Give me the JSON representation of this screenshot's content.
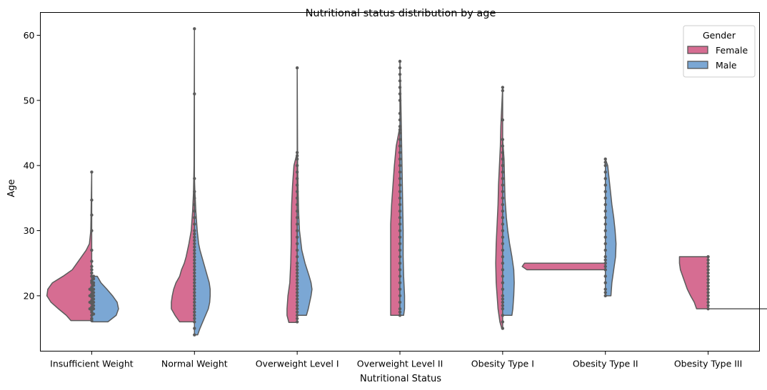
{
  "chart_data": {
    "type": "violin",
    "title": "Nutritional status distribution by age",
    "xlabel": "Nutritional Status",
    "ylabel": "Age",
    "ylim": [
      11.5,
      63.5
    ],
    "yticks": [
      20,
      30,
      40,
      50,
      60
    ],
    "categories": [
      "Insufficient Weight",
      "Normal Weight",
      "Overweight Level I",
      "Overweight Level II",
      "Obesity Type I",
      "Obesity Type II",
      "Obesity Type III"
    ],
    "legend": {
      "title": "Gender",
      "position": "top-right"
    },
    "series": [
      {
        "name": "Female",
        "color": "#d66d92",
        "violins": [
          {
            "min": 16.2,
            "max": 39,
            "profile": [
              [
                16.2,
                0.45
              ],
              [
                17,
                0.55
              ],
              [
                18,
                0.72
              ],
              [
                19,
                0.88
              ],
              [
                20,
                0.97
              ],
              [
                21,
                0.95
              ],
              [
                22,
                0.85
              ],
              [
                23,
                0.62
              ],
              [
                24,
                0.42
              ],
              [
                25,
                0.32
              ],
              [
                26,
                0.22
              ],
              [
                27,
                0.12
              ],
              [
                28,
                0.05
              ],
              [
                30,
                0.02
              ],
              [
                39,
                0
              ]
            ]
          },
          {
            "min": 16,
            "max": 61,
            "profile": [
              [
                16,
                0.32
              ],
              [
                17,
                0.42
              ],
              [
                18,
                0.5
              ],
              [
                19,
                0.5
              ],
              [
                20,
                0.48
              ],
              [
                21,
                0.45
              ],
              [
                22,
                0.4
              ],
              [
                23,
                0.32
              ],
              [
                24,
                0.28
              ],
              [
                25,
                0.22
              ],
              [
                26,
                0.18
              ],
              [
                28,
                0.12
              ],
              [
                30,
                0.07
              ],
              [
                33,
                0.04
              ],
              [
                36,
                0.02
              ],
              [
                40,
                0.01
              ],
              [
                61,
                0
              ]
            ]
          },
          {
            "min": 15.9,
            "max": 42,
            "profile": [
              [
                15.9,
                0.18
              ],
              [
                17,
                0.22
              ],
              [
                18,
                0.22
              ],
              [
                20,
                0.2
              ],
              [
                22,
                0.16
              ],
              [
                25,
                0.14
              ],
              [
                28,
                0.13
              ],
              [
                31,
                0.13
              ],
              [
                34,
                0.12
              ],
              [
                37,
                0.1
              ],
              [
                40,
                0.07
              ],
              [
                42,
                0
              ]
            ]
          },
          {
            "min": 17,
            "max": 46,
            "profile": [
              [
                17,
                0.2
              ],
              [
                18,
                0.2
              ],
              [
                20,
                0.2
              ],
              [
                22,
                0.2
              ],
              [
                25,
                0.2
              ],
              [
                28,
                0.2
              ],
              [
                31,
                0.2
              ],
              [
                34,
                0.18
              ],
              [
                37,
                0.15
              ],
              [
                40,
                0.12
              ],
              [
                43,
                0.08
              ],
              [
                46,
                0
              ]
            ]
          },
          {
            "min": 15,
            "max": 52,
            "profile": [
              [
                15,
                0.02
              ],
              [
                16,
                0.06
              ],
              [
                18,
                0.1
              ],
              [
                20,
                0.12
              ],
              [
                22,
                0.14
              ],
              [
                25,
                0.15
              ],
              [
                28,
                0.14
              ],
              [
                31,
                0.12
              ],
              [
                34,
                0.1
              ],
              [
                37,
                0.09
              ],
              [
                40,
                0.07
              ],
              [
                43,
                0.05
              ],
              [
                46,
                0.04
              ],
              [
                49,
                0.02
              ],
              [
                52,
                0
              ]
            ]
          },
          {
            "min": 24,
            "max": 25,
            "profile": [
              [
                24,
                1.7
              ],
              [
                24.5,
                1.8
              ],
              [
                25,
                1.75
              ]
            ]
          },
          {
            "min": 18,
            "max": 26,
            "profile": [
              [
                18,
                0.25
              ],
              [
                19,
                0.3
              ],
              [
                20,
                0.38
              ],
              [
                21,
                0.45
              ],
              [
                22,
                0.5
              ],
              [
                23,
                0.55
              ],
              [
                24,
                0.6
              ],
              [
                25,
                0.62
              ],
              [
                26,
                0.62
              ]
            ]
          }
        ]
      },
      {
        "name": "Male",
        "color": "#7ba7d4",
        "violins": [
          {
            "min": 16,
            "max": 23,
            "profile": [
              [
                16,
                0.35
              ],
              [
                17,
                0.53
              ],
              [
                18,
                0.58
              ],
              [
                19,
                0.55
              ],
              [
                20,
                0.45
              ],
              [
                21,
                0.33
              ],
              [
                22,
                0.2
              ],
              [
                23,
                0.12
              ]
            ]
          },
          {
            "min": 14,
            "max": 38,
            "profile": [
              [
                14,
                0.07
              ],
              [
                15,
                0.12
              ],
              [
                16,
                0.18
              ],
              [
                17,
                0.24
              ],
              [
                18,
                0.3
              ],
              [
                19,
                0.33
              ],
              [
                20,
                0.34
              ],
              [
                21,
                0.34
              ],
              [
                22,
                0.32
              ],
              [
                23,
                0.28
              ],
              [
                24,
                0.24
              ],
              [
                25,
                0.2
              ],
              [
                26,
                0.16
              ],
              [
                27,
                0.12
              ],
              [
                28,
                0.09
              ],
              [
                30,
                0.06
              ],
              [
                33,
                0.03
              ],
              [
                36,
                0.01
              ],
              [
                38,
                0
              ]
            ]
          },
          {
            "min": 17,
            "max": 55,
            "profile": [
              [
                17,
                0.2
              ],
              [
                18,
                0.24
              ],
              [
                20,
                0.3
              ],
              [
                21,
                0.32
              ],
              [
                22,
                0.3
              ],
              [
                23,
                0.26
              ],
              [
                25,
                0.17
              ],
              [
                27,
                0.1
              ],
              [
                30,
                0.05
              ],
              [
                33,
                0.03
              ],
              [
                36,
                0.02
              ],
              [
                40,
                0.01
              ],
              [
                55,
                0
              ]
            ]
          },
          {
            "min": 17,
            "max": 56,
            "profile": [
              [
                17,
                0.08
              ],
              [
                18,
                0.1
              ],
              [
                20,
                0.1
              ],
              [
                23,
                0.08
              ],
              [
                26,
                0.07
              ],
              [
                30,
                0.07
              ],
              [
                34,
                0.06
              ],
              [
                38,
                0.05
              ],
              [
                42,
                0.04
              ],
              [
                46,
                0.03
              ],
              [
                50,
                0.02
              ],
              [
                53,
                0.01
              ],
              [
                56,
                0
              ]
            ]
          },
          {
            "min": 17,
            "max": 44,
            "profile": [
              [
                17,
                0.2
              ],
              [
                18,
                0.22
              ],
              [
                20,
                0.24
              ],
              [
                22,
                0.25
              ],
              [
                24,
                0.24
              ],
              [
                26,
                0.2
              ],
              [
                28,
                0.15
              ],
              [
                30,
                0.11
              ],
              [
                32,
                0.08
              ],
              [
                35,
                0.05
              ],
              [
                38,
                0.04
              ],
              [
                41,
                0.03
              ],
              [
                44,
                0
              ]
            ]
          },
          {
            "min": 20,
            "max": 41,
            "profile": [
              [
                20,
                0.12
              ],
              [
                22,
                0.14
              ],
              [
                24,
                0.18
              ],
              [
                26,
                0.22
              ],
              [
                28,
                0.23
              ],
              [
                30,
                0.21
              ],
              [
                32,
                0.18
              ],
              [
                34,
                0.14
              ],
              [
                36,
                0.11
              ],
              [
                38,
                0.08
              ],
              [
                40,
                0.05
              ],
              [
                41,
                0
              ]
            ]
          },
          {
            "min": 18,
            "max": 18,
            "profile": [
              [
                18,
                2.2
              ]
            ]
          }
        ]
      }
    ],
    "points": [
      {
        "category": 0,
        "ages": [
          16.2,
          16.5,
          17,
          17.2,
          17.5,
          17.8,
          18,
          18,
          18.3,
          18.5,
          18.8,
          19,
          19,
          19.3,
          19.5,
          19.8,
          20,
          20,
          20.3,
          20.5,
          20.8,
          21,
          21,
          21.3,
          21.6,
          22,
          22,
          22.3,
          22.6,
          23,
          23,
          23.5,
          24,
          24.5,
          25.3,
          27,
          30,
          32.4,
          34.7,
          39
        ]
      },
      {
        "category": 1,
        "ages": [
          14,
          15,
          16,
          16.5,
          17,
          17.5,
          18,
          18.5,
          19,
          19.5,
          20,
          20.5,
          21,
          21.5,
          22,
          22.5,
          23,
          23.5,
          24,
          24.5,
          25,
          25.5,
          26,
          26.5,
          27,
          27.5,
          28,
          28.5,
          29,
          29.5,
          30,
          31,
          32,
          33,
          34,
          35,
          36,
          38,
          51,
          61
        ]
      },
      {
        "category": 2,
        "ages": [
          16,
          16.5,
          17,
          17.5,
          18,
          18.5,
          19,
          19.5,
          20,
          20.5,
          21,
          21.5,
          22,
          22.5,
          23,
          23.5,
          24,
          24.5,
          25,
          26,
          27,
          28,
          29,
          30,
          31,
          32,
          33,
          34,
          35,
          36,
          37,
          38,
          39,
          40,
          41,
          41.5,
          42,
          55
        ]
      },
      {
        "category": 3,
        "ages": [
          17,
          17.5,
          18,
          19,
          20,
          21,
          22,
          23,
          24,
          25,
          26,
          27,
          28,
          29,
          30,
          31,
          32,
          33,
          34,
          35,
          36,
          37,
          38,
          39,
          40,
          41,
          42,
          43,
          44,
          45,
          45.5,
          46,
          47,
          48,
          50,
          51,
          52,
          53,
          54,
          55,
          56
        ]
      },
      {
        "category": 4,
        "ages": [
          15,
          16,
          17,
          18,
          18.5,
          19,
          19.5,
          20,
          21,
          22,
          23,
          24,
          25,
          26,
          27,
          28,
          29,
          30,
          31,
          32,
          33,
          34,
          35,
          36,
          37,
          38,
          39,
          40,
          41,
          42,
          43,
          44,
          47,
          51.5,
          52
        ]
      },
      {
        "category": 5,
        "ages": [
          20,
          20.5,
          21,
          22,
          23,
          24,
          24.5,
          25,
          25.5,
          26,
          27,
          28,
          29,
          30,
          31,
          32,
          33,
          34,
          35,
          36,
          37,
          38,
          39,
          40,
          40.5,
          41
        ]
      },
      {
        "category": 6,
        "ages": [
          18,
          18.5,
          19,
          19.5,
          20,
          20.5,
          21,
          21.5,
          22,
          22.5,
          23,
          23.5,
          24,
          24.5,
          25,
          25.5,
          26
        ]
      }
    ]
  }
}
